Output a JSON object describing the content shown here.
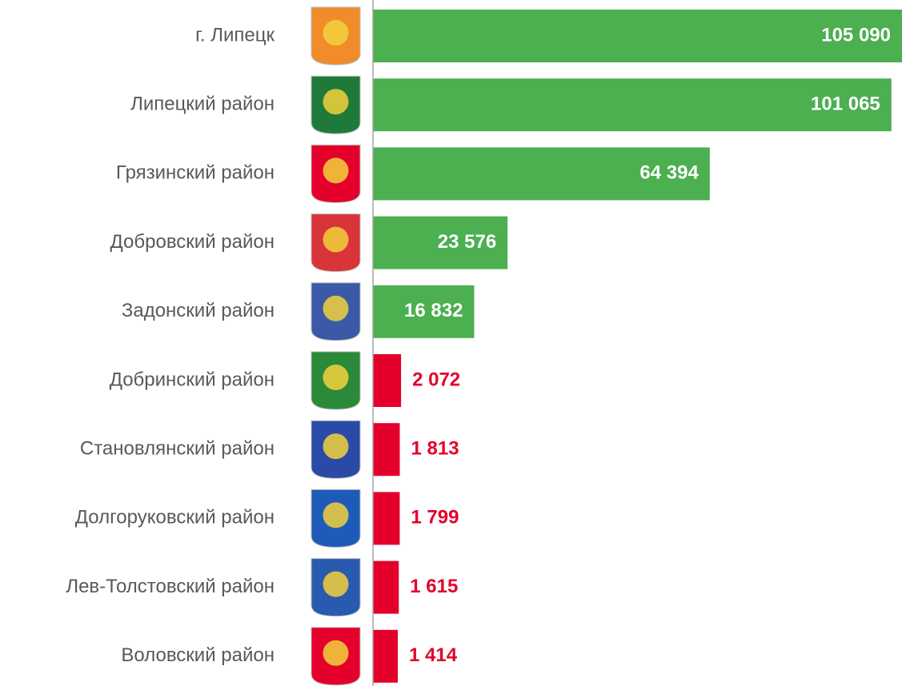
{
  "chart_data": {
    "type": "barh",
    "categories": [
      "г. Липецк",
      "Липецкий  район",
      "Грязинский  район",
      "Добровский  район",
      "Задонский  район",
      "Добринский  район",
      "Становлянский  район",
      "Долгоруковский район",
      "Лев-Толстовский  район",
      "Воловский  район"
    ],
    "values": [
      105090,
      101065,
      64394,
      23576,
      16832,
      2072,
      1813,
      1799,
      1615,
      1414
    ],
    "value_labels": [
      "105 090",
      "101 065",
      "64 394",
      "23 576",
      "16 832",
      "2 072",
      "1 813",
      "1 799",
      "1 615",
      "1 414"
    ],
    "colors": [
      "#4caf50",
      "#4caf50",
      "#4caf50",
      "#4caf50",
      "#4caf50",
      "#e4002b",
      "#e4002b",
      "#e4002b",
      "#e4002b",
      "#e4002b"
    ],
    "xlim": [
      -3600,
      103200
    ]
  }
}
